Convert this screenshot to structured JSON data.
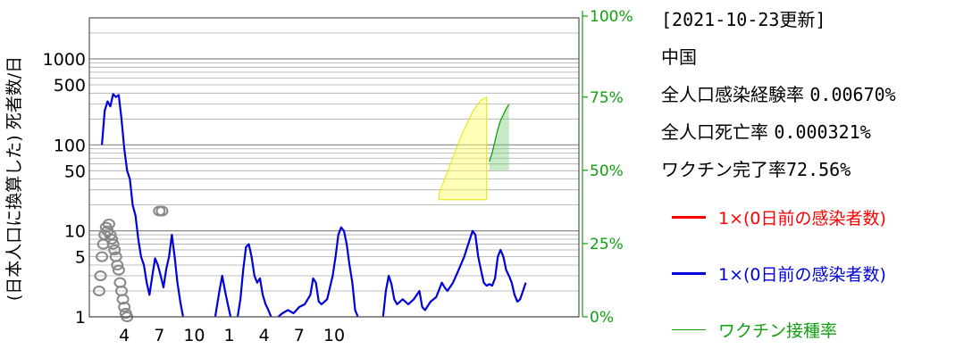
{
  "info": {
    "updated": "[2021-10-23更新]",
    "country": "中国",
    "infection_rate_label": "全人口感染経験率",
    "infection_rate_value": "0.00670%",
    "death_rate_label": "全人口死亡率",
    "death_rate_value": "0.000321%",
    "vaccine_rate_label": "ワクチン完了率",
    "vaccine_rate_value": "72.56%"
  },
  "legend": [
    {
      "label": "1×(0日前の感染者数)",
      "color": "#ff0000"
    },
    {
      "label": "1×(0日前の感染者数)",
      "color": "#0000dd"
    },
    {
      "label": "ワクチン接種率",
      "color": "#10a010"
    }
  ],
  "chart_data": {
    "type": "line",
    "ylabel": "(日本人口に換算した) 死者数/日",
    "y_scale": "log",
    "ylim": [
      1,
      3000
    ],
    "y_ticks": [
      "1",
      "5",
      "10",
      "50",
      "100",
      "500",
      "1000"
    ],
    "y_right_ticks": [
      "0%",
      "25%",
      "50%",
      "75%",
      "100%"
    ],
    "x_ticks": [
      "4",
      "7",
      "10",
      "1",
      "4",
      "7",
      "10"
    ],
    "grid": true,
    "series": [
      {
        "color": "#0000dd",
        "points": [
          [
            2020.09,
            100
          ],
          [
            2020.11,
            250
          ],
          [
            2020.13,
            320
          ],
          [
            2020.15,
            280
          ],
          [
            2020.17,
            390
          ],
          [
            2020.19,
            360
          ],
          [
            2020.21,
            380
          ],
          [
            2020.23,
            200
          ],
          [
            2020.25,
            90
          ],
          [
            2020.27,
            50
          ],
          [
            2020.29,
            40
          ],
          [
            2020.31,
            20
          ],
          [
            2020.33,
            15
          ],
          [
            2020.35,
            8
          ],
          [
            2020.37,
            5
          ],
          [
            2020.39,
            4
          ],
          [
            2020.41,
            2.5
          ],
          [
            2020.43,
            1.8
          ],
          [
            2020.45,
            3
          ],
          [
            2020.47,
            4.8
          ],
          [
            2020.49,
            4
          ],
          [
            2020.51,
            3
          ],
          [
            2020.53,
            2.2
          ],
          [
            2020.55,
            3.6
          ],
          [
            2020.57,
            5
          ],
          [
            2020.59,
            9
          ],
          [
            2020.61,
            5
          ],
          [
            2020.63,
            2.5
          ],
          [
            2020.65,
            1.5
          ],
          [
            2020.67,
            1
          ]
        ]
      },
      {
        "color": "#0000dd",
        "points": [
          [
            2020.9,
            1
          ],
          [
            2020.93,
            2
          ],
          [
            2020.95,
            3
          ],
          [
            2020.97,
            2
          ],
          [
            2020.99,
            1.4
          ],
          [
            2021.01,
            1
          ]
        ]
      },
      {
        "color": "#0000dd",
        "points": [
          [
            2021.06,
            1
          ],
          [
            2021.08,
            1.6
          ],
          [
            2021.1,
            3.5
          ],
          [
            2021.12,
            6.5
          ],
          [
            2021.14,
            7
          ],
          [
            2021.16,
            5
          ],
          [
            2021.18,
            3
          ],
          [
            2021.2,
            2.5
          ],
          [
            2021.22,
            2.8
          ],
          [
            2021.24,
            1.8
          ],
          [
            2021.26,
            1.4
          ],
          [
            2021.28,
            1.2
          ],
          [
            2021.3,
            1
          ]
        ]
      },
      {
        "color": "#0000dd",
        "points": [
          [
            2021.35,
            1
          ],
          [
            2021.38,
            1.1
          ],
          [
            2021.42,
            1.2
          ],
          [
            2021.46,
            1.1
          ],
          [
            2021.5,
            1.3
          ],
          [
            2021.54,
            1.4
          ],
          [
            2021.58,
            1.8
          ],
          [
            2021.6,
            2.8
          ],
          [
            2021.62,
            2.5
          ],
          [
            2021.64,
            1.5
          ],
          [
            2021.66,
            1.4
          ],
          [
            2021.7,
            1.6
          ],
          [
            2021.74,
            3
          ],
          [
            2021.76,
            5
          ],
          [
            2021.78,
            9
          ],
          [
            2021.8,
            11
          ],
          [
            2021.82,
            10
          ],
          [
            2021.84,
            7
          ],
          [
            2021.86,
            4
          ],
          [
            2021.88,
            2.5
          ],
          [
            2021.9,
            1.2
          ],
          [
            2021.92,
            1
          ]
        ]
      },
      {
        "color": "#0000dd",
        "points": [
          [
            2022.1,
            1
          ],
          [
            2022.12,
            2
          ],
          [
            2022.14,
            3
          ],
          [
            2022.16,
            2.4
          ],
          [
            2022.18,
            1.6
          ],
          [
            2022.2,
            1.4
          ],
          [
            2022.24,
            1.6
          ],
          [
            2022.28,
            1.4
          ],
          [
            2022.32,
            1.6
          ],
          [
            2022.36,
            2
          ],
          [
            2022.38,
            1.3
          ],
          [
            2022.4,
            1.2
          ],
          [
            2022.44,
            1.5
          ],
          [
            2022.48,
            1.7
          ],
          [
            2022.52,
            2.5
          ],
          [
            2022.54,
            2.2
          ],
          [
            2022.56,
            2
          ],
          [
            2022.6,
            2.5
          ],
          [
            2022.64,
            3.5
          ],
          [
            2022.68,
            5
          ],
          [
            2022.72,
            8
          ],
          [
            2022.74,
            10
          ],
          [
            2022.76,
            9
          ],
          [
            2022.78,
            5
          ],
          [
            2022.8,
            3.5
          ],
          [
            2022.82,
            2.5
          ],
          [
            2022.84,
            2.3
          ],
          [
            2022.86,
            2.4
          ],
          [
            2022.88,
            2.3
          ],
          [
            2022.9,
            2.8
          ],
          [
            2022.92,
            5
          ],
          [
            2022.94,
            6
          ],
          [
            2022.96,
            5
          ],
          [
            2022.98,
            3.5
          ],
          [
            2023.0,
            3
          ],
          [
            2023.02,
            2.5
          ],
          [
            2023.04,
            1.8
          ],
          [
            2023.06,
            1.5
          ],
          [
            2023.08,
            1.6
          ],
          [
            2023.1,
            2
          ],
          [
            2023.12,
            2.5
          ]
        ]
      }
    ],
    "scatter": {
      "color": "#888888",
      "points": [
        [
          2020.07,
          2
        ],
        [
          2020.08,
          3
        ],
        [
          2020.09,
          5
        ],
        [
          2020.1,
          7
        ],
        [
          2020.11,
          9
        ],
        [
          2020.12,
          11
        ],
        [
          2020.13,
          10
        ],
        [
          2020.14,
          12
        ],
        [
          2020.15,
          9
        ],
        [
          2020.16,
          8
        ],
        [
          2020.17,
          7
        ],
        [
          2020.18,
          6
        ],
        [
          2020.19,
          5
        ],
        [
          2020.2,
          4
        ],
        [
          2020.21,
          3.5
        ],
        [
          2020.22,
          2.5
        ],
        [
          2020.23,
          2
        ],
        [
          2020.24,
          1.6
        ],
        [
          2020.25,
          1.3
        ],
        [
          2020.26,
          1.1
        ],
        [
          2020.27,
          1
        ],
        [
          2020.5,
          17
        ],
        [
          2020.52,
          17
        ]
      ]
    },
    "vaccine": {
      "color": "#10a010",
      "start_x": 2022.86,
      "points": [
        [
          2022.86,
          0.53
        ],
        [
          2022.88,
          0.56
        ],
        [
          2022.9,
          0.6
        ],
        [
          2022.92,
          0.64
        ],
        [
          2022.94,
          0.67
        ],
        [
          2022.96,
          0.69
        ],
        [
          2022.98,
          0.71
        ],
        [
          2023.0,
          0.725
        ]
      ]
    },
    "projection": {
      "color": "#ffff00",
      "upper": [
        [
          2022.5,
          0.42
        ],
        [
          2022.58,
          0.52
        ],
        [
          2022.66,
          0.62
        ],
        [
          2022.74,
          0.7
        ],
        [
          2022.8,
          0.74
        ],
        [
          2022.84,
          0.75
        ]
      ],
      "lower_level": 0.4
    }
  }
}
